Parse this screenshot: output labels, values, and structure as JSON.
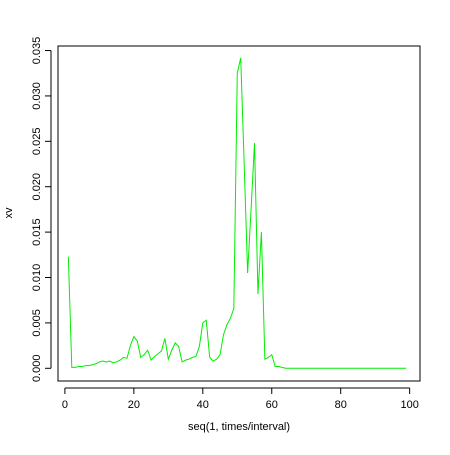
{
  "chart_data": {
    "type": "line",
    "title": "",
    "xlabel": "seq(1, times/interval)",
    "ylabel": "xv",
    "xlim": [
      -2,
      103
    ],
    "ylim": [
      -0.0014,
      0.0355
    ],
    "x_ticks": [
      0,
      20,
      40,
      60,
      80,
      100
    ],
    "x_tick_labels": [
      "0",
      "20",
      "40",
      "60",
      "80",
      "100"
    ],
    "y_ticks": [
      0,
      0.005,
      0.01,
      0.015,
      0.02,
      0.025,
      0.03,
      0.035
    ],
    "y_tick_labels": [
      "0.000",
      "0.005",
      "0.010",
      "0.015",
      "0.020",
      "0.025",
      "0.030",
      "0.035"
    ],
    "grid": false,
    "legend": "none",
    "line_color": "#00ee00",
    "series": [
      {
        "x": [
          1,
          2,
          3,
          4,
          5,
          6,
          7,
          8,
          9,
          10,
          11,
          12,
          13,
          14,
          15,
          16,
          17,
          18,
          19,
          20,
          21,
          22,
          23,
          24,
          25,
          26,
          27,
          28,
          29,
          30,
          31,
          32,
          33,
          34,
          35,
          36,
          37,
          38,
          39,
          40,
          41,
          42,
          43,
          44,
          45,
          46,
          47,
          48,
          49,
          50,
          51,
          52,
          53,
          54,
          55,
          56,
          57,
          58,
          59,
          60,
          61,
          62,
          63,
          64,
          65,
          66,
          67,
          68,
          69,
          70,
          71,
          72,
          73,
          74,
          75,
          76,
          77,
          78,
          79,
          80,
          81,
          82,
          83,
          84,
          85,
          86,
          87,
          88,
          89,
          90,
          91,
          92,
          93,
          94,
          95,
          96,
          97,
          98,
          99
        ],
        "y": [
          0.0123,
          0.0001,
          0.0001,
          0.0002,
          0.0002,
          0.0003,
          0.0003,
          0.0004,
          0.0005,
          0.0007,
          0.0008,
          0.0007,
          0.0008,
          0.0006,
          0.0007,
          0.0009,
          0.0012,
          0.0011,
          0.0025,
          0.0035,
          0.003,
          0.0012,
          0.0015,
          0.002,
          0.0009,
          0.0013,
          0.0016,
          0.0019,
          0.0033,
          0.001,
          0.002,
          0.0028,
          0.0024,
          0.0007,
          0.0009,
          0.001,
          0.0012,
          0.0013,
          0.0024,
          0.005,
          0.0053,
          0.0012,
          0.0008,
          0.001,
          0.0015,
          0.0037,
          0.0048,
          0.0055,
          0.0066,
          0.0325,
          0.0342,
          0.0225,
          0.0105,
          0.0175,
          0.0248,
          0.0082,
          0.015,
          0.001,
          0.0012,
          0.0015,
          0.0002,
          0.0002,
          0.0001,
          0,
          0,
          0,
          0,
          0,
          0,
          0,
          0,
          0,
          0,
          0,
          0,
          0,
          0,
          0,
          0,
          0,
          0,
          0,
          0,
          0,
          0,
          0,
          0,
          0,
          0,
          0,
          0,
          0,
          0,
          0,
          0,
          0,
          0,
          0,
          0
        ]
      }
    ]
  }
}
